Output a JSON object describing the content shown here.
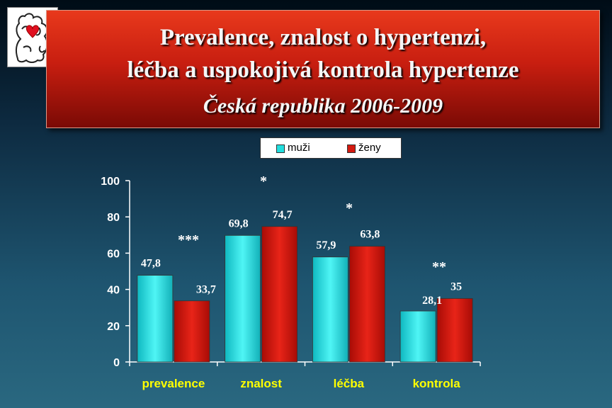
{
  "header": {
    "line1": "Prevalence, znalost o hypertenzi,",
    "line2": "léčba a uspokojivá kontrola hypertenze",
    "line3": "Česká republika 2006-2009"
  },
  "logo": {
    "icon": "czech-lion-heart-logo-icon"
  },
  "colors": {
    "muzi": "#22dede",
    "zeny": "#d41a10",
    "category_labels": "#ffff00"
  },
  "chart_data": {
    "type": "bar",
    "title": "",
    "xlabel": "",
    "ylabel": "",
    "ylim": [
      0,
      100
    ],
    "yticks": [
      "0",
      "20",
      "40",
      "60",
      "80",
      "100"
    ],
    "grid": false,
    "legend_position": "top-center",
    "categories": [
      "prevalence",
      "znalost",
      "léčba",
      "kontrola"
    ],
    "series": [
      {
        "name": "muži",
        "values": [
          47.8,
          69.8,
          57.9,
          28.1
        ],
        "labels": [
          "47,8",
          "69,8",
          "57,9",
          "28,1"
        ]
      },
      {
        "name": "ženy",
        "values": [
          33.7,
          74.7,
          63.8,
          35
        ],
        "labels": [
          "33,7",
          "74,7",
          "63,8",
          "35"
        ]
      }
    ],
    "significance": [
      "***",
      "*",
      "*",
      "**"
    ]
  }
}
